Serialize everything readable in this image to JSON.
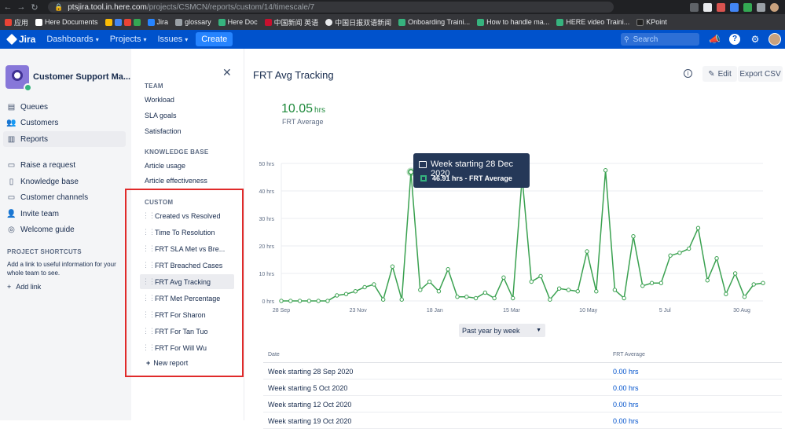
{
  "browser": {
    "url_host": "ptsjira.tool.in.here.com",
    "url_path": "/projects/CSMCN/reports/custom/14/timescale/7",
    "bookmarks": [
      "应用",
      "Here Documents",
      "Jira",
      "glossary",
      "Here Doc",
      "中国新闻 英语",
      "中国日报双语新闻",
      "Onboarding Traini...",
      "How to handle ma...",
      "HERE video Traini...",
      "KPoint"
    ]
  },
  "topnav": {
    "logo": "Jira",
    "items": [
      "Dashboards",
      "Projects",
      "Issues"
    ],
    "create": "Create",
    "search_placeholder": "Search"
  },
  "project": {
    "name": "Customer Support Ma...",
    "nav": [
      "Queues",
      "Customers",
      "Reports"
    ],
    "nav2": [
      "Raise a request",
      "Knowledge base",
      "Customer channels",
      "Invite team",
      "Welcome guide"
    ],
    "shortcuts_title": "PROJECT SHORTCUTS",
    "shortcuts_desc": "Add a link to useful information for your whole team to see.",
    "add_link": "Add link"
  },
  "reports_nav": {
    "team_title": "TEAM",
    "team_items": [
      "Workload",
      "SLA goals",
      "Satisfaction"
    ],
    "kb_title": "KNOWLEDGE BASE",
    "kb_items": [
      "Article usage",
      "Article effectiveness"
    ],
    "custom_title": "CUSTOM",
    "custom_items": [
      "Created vs Resolved",
      "Time To Resolution",
      "FRT SLA Met vs Bre...",
      "FRT Breached Cases",
      "FRT Avg Tracking",
      "FRT Met Percentage",
      "FRT For Sharon",
      "FRT For Tan Tuo",
      "FRT For Will Wu"
    ],
    "new_report": "New report"
  },
  "report": {
    "title": "FRT Avg Tracking",
    "edit": "Edit",
    "export": "Export CSV",
    "kpi_value": "10.05",
    "kpi_unit": "hrs",
    "kpi_label": "FRT Average",
    "tooltip_title": "Week starting 28 Dec 2020",
    "tooltip_value": "46.91 hrs - FRT Average",
    "period": "Past year by week",
    "table_headers": [
      "Date",
      "FRT Average"
    ],
    "rows": [
      [
        "Week starting 28 Sep 2020",
        "0.00 hrs"
      ],
      [
        "Week starting 5 Oct 2020",
        "0.00 hrs"
      ],
      [
        "Week starting 12 Oct 2020",
        "0.00 hrs"
      ],
      [
        "Week starting 19 Oct 2020",
        "0.00 hrs"
      ]
    ]
  },
  "chart_data": {
    "type": "line",
    "y_ticks": [
      "0 hrs",
      "10 hrs",
      "20 hrs",
      "30 hrs",
      "40 hrs",
      "50 hrs"
    ],
    "ylim": [
      0,
      50
    ],
    "x_ticks": [
      "28 Sep",
      "23 Nov",
      "18 Jan",
      "15 Mar",
      "10 May",
      "5 Jul",
      "30 Aug"
    ],
    "series": [
      {
        "values": [
          0,
          0,
          0,
          0,
          0,
          0,
          2,
          2.5,
          3.5,
          5,
          6,
          0.5,
          12.5,
          0.5,
          46.91,
          4,
          7,
          3.5,
          11.5,
          1.5,
          1.5,
          1,
          3,
          1,
          8.5,
          1,
          45,
          7,
          9,
          0.5,
          4.5,
          4,
          3.5,
          18,
          3.5,
          47.5,
          4,
          1,
          23.5,
          5.5,
          6.5,
          6.5,
          16.5,
          17.5,
          19,
          26.5,
          7.5,
          15.5,
          2.5,
          10,
          1.5,
          6,
          6.5
        ],
        "color": "#3aa150"
      }
    ],
    "grid": true
  }
}
